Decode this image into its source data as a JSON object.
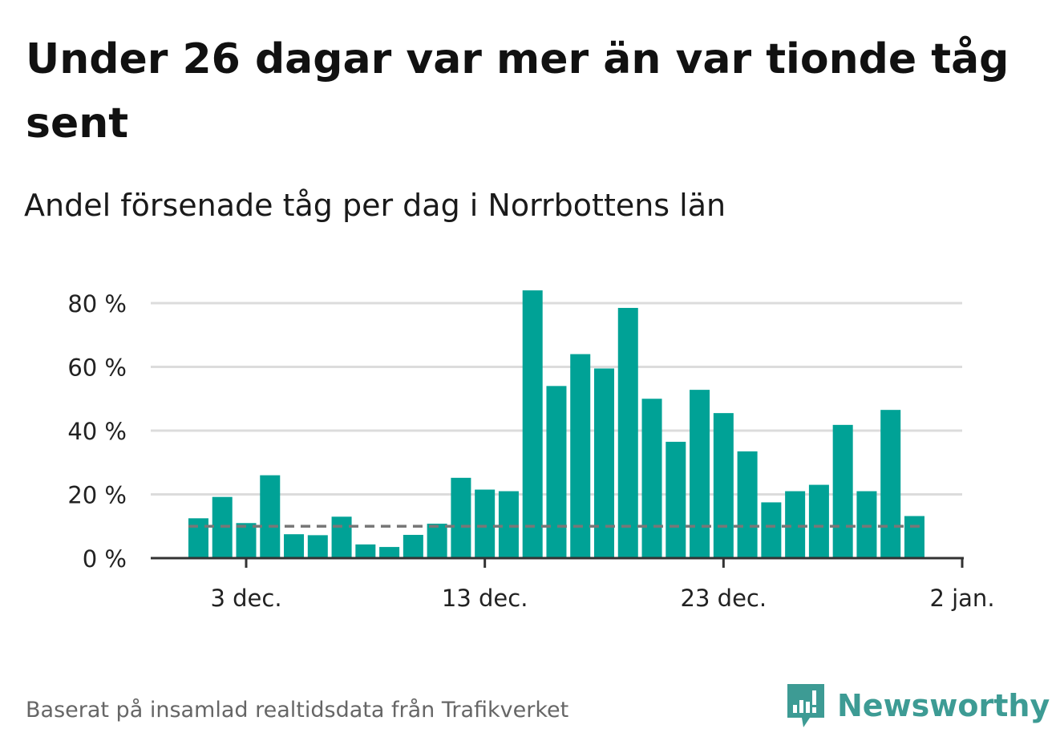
{
  "title": "Under 26 dagar var mer än var tionde tåg sent",
  "subtitle": "Andel försenade tåg per dag i Norrbottens län",
  "source": "Baserat på insamlad realtidsdata från Trafikverket",
  "brand": {
    "name": "Newsworthy",
    "color": "#3d9b94"
  },
  "chart_data": {
    "type": "bar",
    "title": "Under 26 dagar var mer än var tionde tåg sent",
    "subtitle": "Andel försenade tåg per dag i Norrbottens län",
    "bar_color": "#00a296",
    "reference_line": {
      "value": 10,
      "style": "dashed",
      "color": "#777777"
    },
    "x": [
      "2023-12-01",
      "2023-12-02",
      "2023-12-03",
      "2023-12-04",
      "2023-12-05",
      "2023-12-06",
      "2023-12-07",
      "2023-12-08",
      "2023-12-09",
      "2023-12-10",
      "2023-12-11",
      "2023-12-12",
      "2023-12-13",
      "2023-12-14",
      "2023-12-15",
      "2023-12-16",
      "2023-12-17",
      "2023-12-18",
      "2023-12-19",
      "2023-12-20",
      "2023-12-21",
      "2023-12-22",
      "2023-12-23",
      "2023-12-24",
      "2023-12-25",
      "2023-12-26",
      "2023-12-27",
      "2023-12-28",
      "2023-12-29",
      "2023-12-30",
      "2023-12-31",
      "2024-01-01"
    ],
    "values": [
      12.5,
      19.2,
      11.0,
      26.0,
      7.5,
      7.2,
      13.0,
      4.3,
      3.5,
      7.3,
      10.8,
      25.2,
      21.5,
      21.0,
      84.0,
      54.0,
      64.0,
      59.5,
      78.5,
      50.0,
      36.5,
      52.8,
      45.5,
      33.5,
      17.5,
      21.0,
      23.0,
      41.8,
      21.0,
      46.5,
      13.2,
      null
    ],
    "ylim": [
      0,
      80
    ],
    "yticks": [
      0,
      20,
      40,
      60,
      80
    ],
    "ytick_labels": [
      "0 %",
      "20 %",
      "40 %",
      "60 %",
      "80 %"
    ],
    "xticks": [
      "2023-12-03",
      "2023-12-13",
      "2023-12-23",
      "2024-01-02"
    ],
    "xtick_labels": [
      "3 dec.",
      "13 dec.",
      "23 dec.",
      "2 jan."
    ],
    "grid": true
  }
}
